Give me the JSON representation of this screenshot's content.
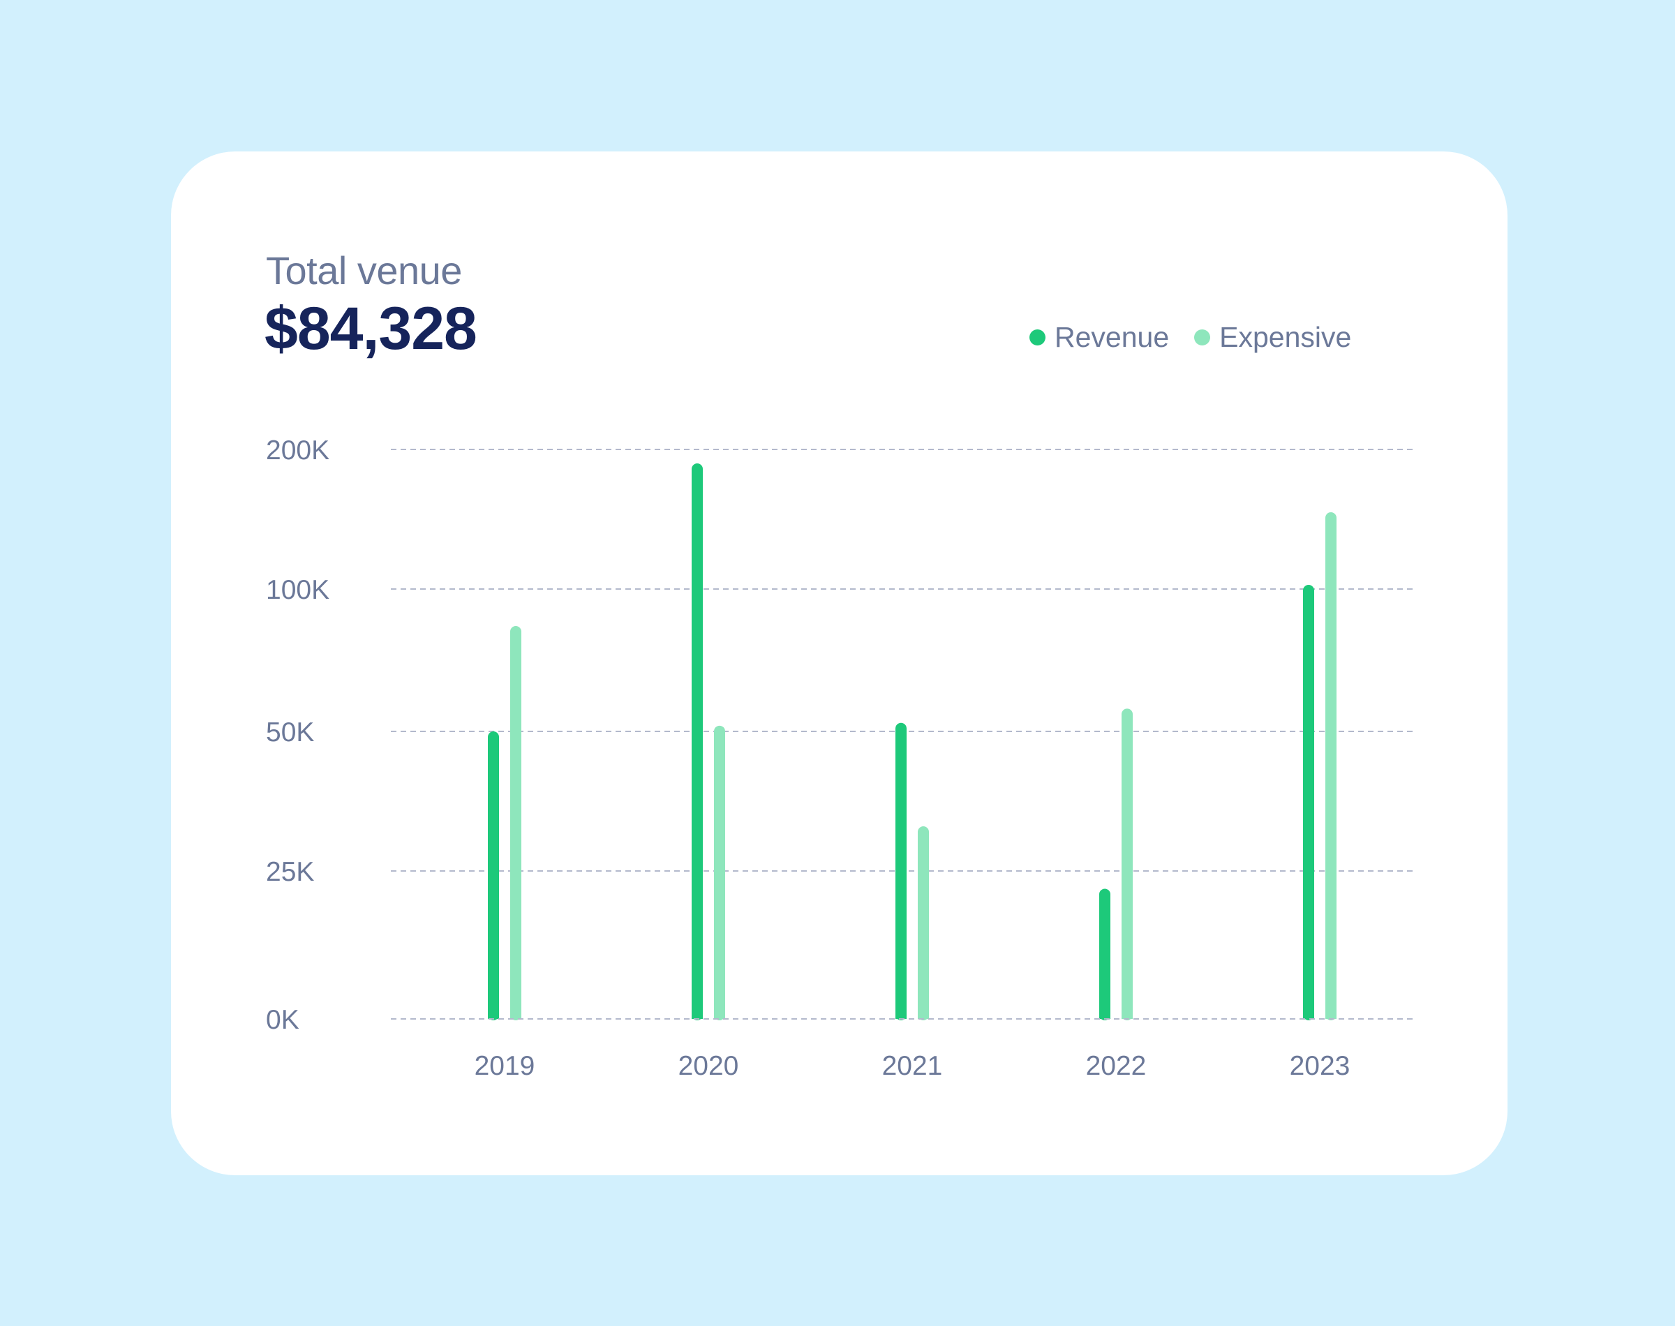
{
  "card": {
    "title": "Total venue",
    "total": "$84,328"
  },
  "colors": {
    "background": "#d2f0fd",
    "card": "#ffffff",
    "revenue": "#1dc97a",
    "expensive": "#8ee6bc",
    "grid": "#b3b9cc",
    "text_muted": "#6b7898",
    "text_dark": "#16245b"
  },
  "chart_data": {
    "type": "bar",
    "categories": [
      "2019",
      "2020",
      "2021",
      "2022",
      "2023"
    ],
    "series": [
      {
        "name": "Revenue",
        "values": [
          50000,
          190000,
          53000,
          22000,
          103000
        ]
      },
      {
        "name": "Expensive",
        "values": [
          87000,
          52000,
          33000,
          58000,
          155000
        ]
      }
    ],
    "y_ticks": [
      0,
      25000,
      50000,
      100000,
      200000
    ],
    "y_tick_labels": [
      "0K",
      "25K",
      "50K",
      "100K",
      "200K"
    ],
    "ylim": [
      0,
      200000
    ],
    "grid": true,
    "grid_style": "dashed",
    "legend_position": "top-right"
  }
}
